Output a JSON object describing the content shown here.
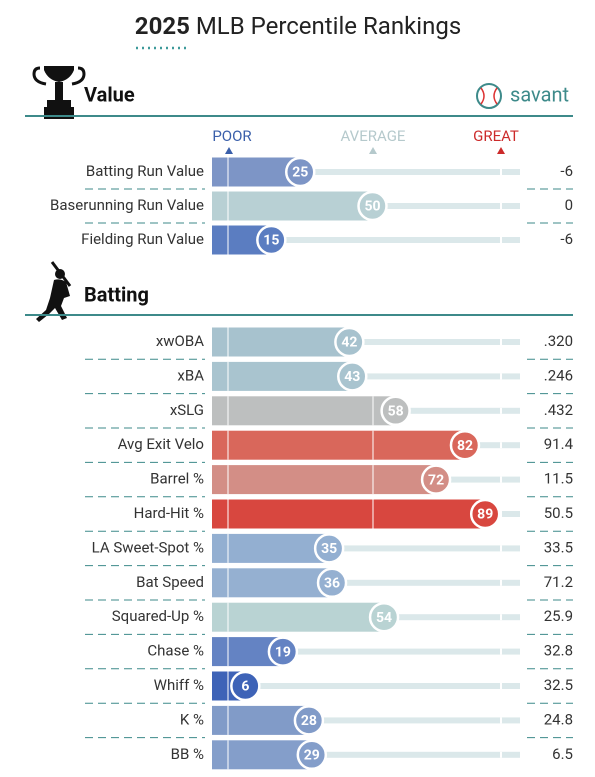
{
  "title_year": "2025",
  "title_rest": "MLB Percentile Rankings",
  "brand": "savant",
  "scale": {
    "poor": "POOR",
    "average": "AVERAGE",
    "great": "GREAT"
  },
  "sections": [
    {
      "name": "Value",
      "rows": [
        {
          "label": "Batting Run Value",
          "percentile": 25,
          "stat": -6,
          "color": "#7d95c6"
        },
        {
          "label": "Baserunning Run Value",
          "percentile": 50,
          "stat": 0,
          "color": "#b8d0d4"
        },
        {
          "label": "Fielding Run Value",
          "percentile": 15,
          "stat": -6,
          "color": "#5b7dc1"
        }
      ]
    },
    {
      "name": "Batting",
      "rows": [
        {
          "label": "xwOBA",
          "percentile": 42,
          "stat": ".320",
          "color": "#a7c2ce"
        },
        {
          "label": "xBA",
          "percentile": 43,
          "stat": ".246",
          "color": "#a9c4cf"
        },
        {
          "label": "xSLG",
          "percentile": 58,
          "stat": ".432",
          "color": "#bdbfbf"
        },
        {
          "label": "Avg Exit Velo",
          "percentile": 82,
          "stat": 91.4,
          "color": "#d9675b"
        },
        {
          "label": "Barrel %",
          "percentile": 72,
          "stat": 11.5,
          "color": "#d38e86"
        },
        {
          "label": "Hard-Hit %",
          "percentile": 89,
          "stat": 50.5,
          "color": "#d8473f"
        },
        {
          "label": "LA Sweet-Spot %",
          "percentile": 35,
          "stat": 33.5,
          "color": "#93afd1"
        },
        {
          "label": "Bat Speed",
          "percentile": 36,
          "stat": 71.2,
          "color": "#95b0d1"
        },
        {
          "label": "Squared-Up %",
          "percentile": 54,
          "stat": 25.9,
          "color": "#b9d3d3"
        },
        {
          "label": "Chase %",
          "percentile": 19,
          "stat": 32.8,
          "color": "#6483c3"
        },
        {
          "label": "Whiff %",
          "percentile": 6,
          "stat": 32.5,
          "color": "#3e63b7"
        },
        {
          "label": "K %",
          "percentile": 28,
          "stat": 24.8,
          "color": "#819bc8"
        },
        {
          "label": "BB %",
          "percentile": 29,
          "stat": 6.5,
          "color": "#849eca"
        }
      ]
    }
  ]
}
